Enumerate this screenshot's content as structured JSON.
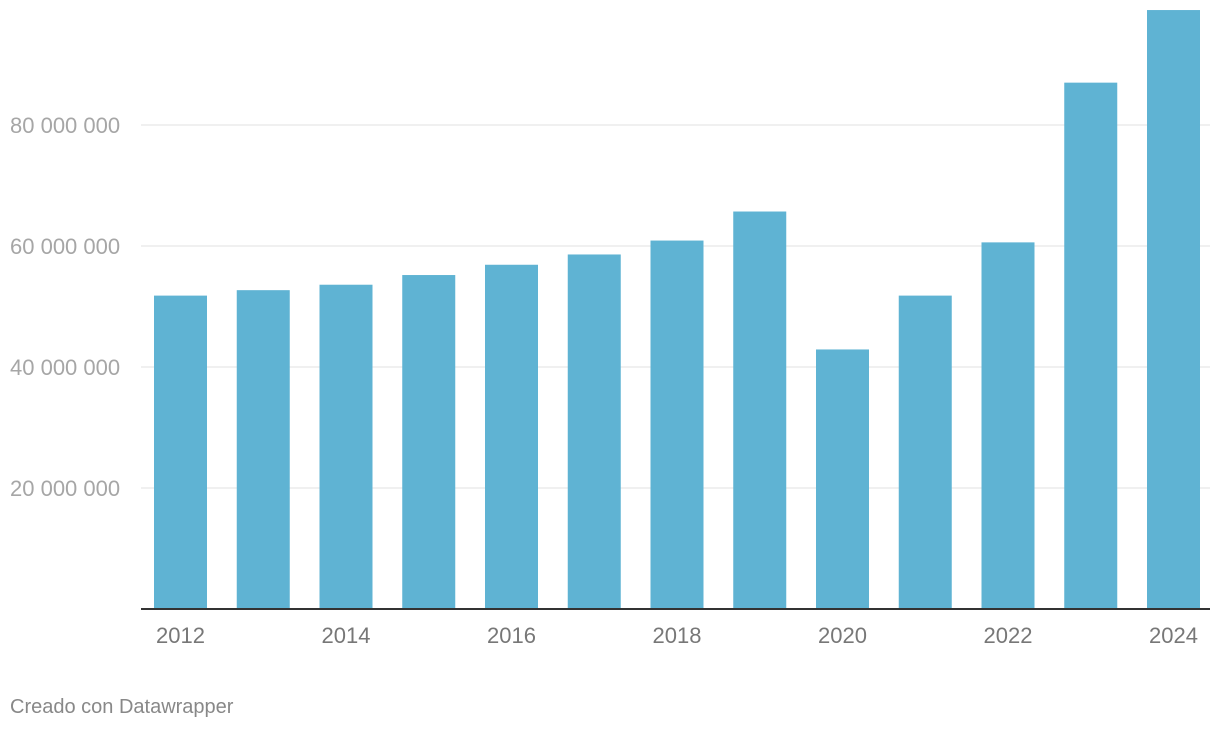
{
  "chart_data": {
    "type": "bar",
    "categories": [
      "2012",
      "2013",
      "2014",
      "2015",
      "2016",
      "2017",
      "2018",
      "2019",
      "2020",
      "2021",
      "2022",
      "2023",
      "2024"
    ],
    "values": [
      51800000,
      52700000,
      53600000,
      55200000,
      56900000,
      58600000,
      60900000,
      65700000,
      42900000,
      51800000,
      60600000,
      87000000,
      99000000
    ],
    "x_tick_labels": [
      "2012",
      "2014",
      "2016",
      "2018",
      "2020",
      "2022",
      "2024"
    ],
    "y_ticks": [
      20000000,
      40000000,
      60000000,
      80000000
    ],
    "y_tick_labels": [
      "20 000 000",
      "40 000 000",
      "60 000 000",
      "80 000 000"
    ],
    "ylim": [
      0,
      100000000
    ],
    "grid": true,
    "bar_color": "#5fb3d3"
  },
  "footer": {
    "credit": "Creado con Datawrapper"
  }
}
